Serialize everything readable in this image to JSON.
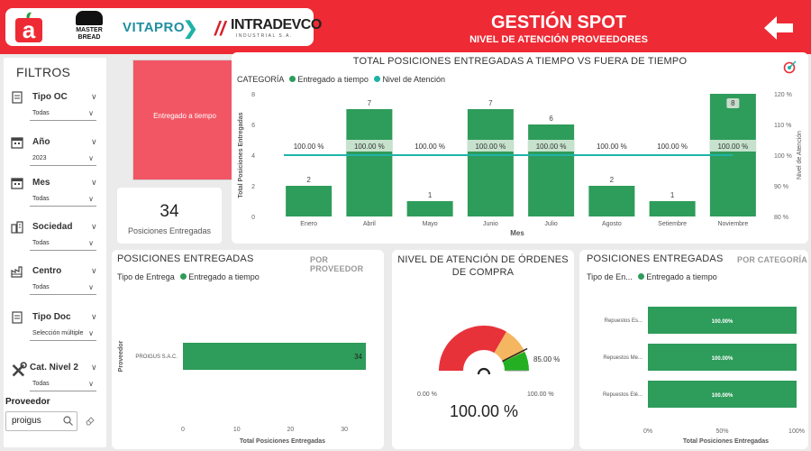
{
  "header": {
    "brand_vitapro": "VITAPRO",
    "brand_intradevco": "INTRADEVCO",
    "brand_intradevco_sub": "INDUSTRIAL S.A.",
    "brand_masterbread": "MASTER\nBREAD",
    "title": "GESTIÓN SPOT",
    "subtitle": "NIVEL DE ATENCIÓN PROVEEDORES"
  },
  "filters": {
    "title": "FILTROS",
    "items": [
      {
        "label": "Tipo OC",
        "value": "Todas",
        "icon": "document-icon"
      },
      {
        "label": "Año",
        "value": "2023",
        "icon": "calendar-icon"
      },
      {
        "label": "Mes",
        "value": "Todas",
        "icon": "calendar-icon"
      },
      {
        "label": "Sociedad",
        "value": "Todas",
        "icon": "building-icon"
      },
      {
        "label": "Centro",
        "value": "Todas",
        "icon": "factory-icon"
      },
      {
        "label": "Tipo Doc",
        "value": "Selección múltiple",
        "icon": "document-icon"
      },
      {
        "label": "Cat. Nivel 2",
        "value": "Todas",
        "icon": "tools-icon"
      }
    ],
    "proveedor_label": "Proveedor",
    "proveedor_value": "proigus"
  },
  "kpi": {
    "red_card_label": "Entregado a tiempo",
    "total_value": "34",
    "total_label": "Posiciones Entregadas"
  },
  "colors": {
    "brand_red": "#ee2a34",
    "bar_green": "#2e9c5a",
    "line_teal": "#1fb3a7",
    "card_red": "#f25664",
    "gauge_red": "#e8323a",
    "gauge_orange": "#f5b661",
    "gauge_green": "#22b022"
  },
  "main_chart": {
    "title": "TOTAL POSICIONES ENTREGADAS A TIEMPO VS FUERA DE TIEMPO",
    "legend_title": "CATEGORÍA",
    "legend_bar": "Entregado a tiempo",
    "legend_line": "Nivel de Atención",
    "ylabel_left": "Total Posiciones Entregadas",
    "ylabel_right": "Nivel de Atención",
    "xlabel": "Mes"
  },
  "chart_data": [
    {
      "type": "bar",
      "title": "TOTAL POSICIONES ENTREGADAS A TIEMPO VS FUERA DE TIEMPO",
      "categories": [
        "Enero",
        "Abril",
        "Mayo",
        "Junio",
        "Julio",
        "Agosto",
        "Setiembre",
        "Noviembre"
      ],
      "series": [
        {
          "name": "Entregado a tiempo",
          "type": "bar",
          "values": [
            2,
            7,
            1,
            7,
            6,
            2,
            1,
            8
          ]
        },
        {
          "name": "Nivel de Atención",
          "type": "line",
          "axis": "right",
          "values": [
            100,
            100,
            100,
            100,
            100,
            100,
            100,
            100
          ],
          "labels": [
            "100.00 %",
            "100.00 %",
            "100.00 %",
            "100.00 %",
            "100.00 %",
            "100.00 %",
            "100.00 %",
            "100.00 %"
          ]
        }
      ],
      "xlabel": "Mes",
      "ylabel": "Total Posiciones Entregadas",
      "ylabel_right": "Nivel de Atención",
      "ylim": [
        0,
        8
      ],
      "yticks": [
        0,
        2,
        4,
        6,
        8
      ],
      "ylim_right": [
        80,
        120
      ],
      "yticks_right": [
        "80 %",
        "90 %",
        "100 %",
        "110 %",
        "120 %"
      ],
      "legend": "top-left"
    },
    {
      "type": "bar",
      "orientation": "horizontal",
      "title": "POSICIONES ENTREGADAS",
      "categories": [
        "PROIGUS S.A.C."
      ],
      "series": [
        {
          "name": "Entregado a tiempo",
          "values": [
            34
          ]
        }
      ],
      "xlabel": "Total Posiciones Entregadas",
      "ylabel": "Proveedor",
      "xlim": [
        0,
        35
      ],
      "xticks": [
        0,
        10,
        20,
        30
      ]
    },
    {
      "type": "gauge",
      "title": "NIVEL DE ATENCIÓN DE ÓRDENES DE COMPRA",
      "value": 100,
      "value_label": "100.00 %",
      "min_label": "0.00 %",
      "max_label": "100.00 %",
      "target_label": "85.00 %"
    },
    {
      "type": "bar",
      "orientation": "horizontal",
      "stacked_percent": true,
      "title": "POSICIONES ENTREGADAS",
      "categories": [
        "Repuestos Es...",
        "Repuestos Me...",
        "Repuestos Elé..."
      ],
      "series": [
        {
          "name": "Entregado a tiempo",
          "values": [
            100,
            100,
            100
          ],
          "labels": [
            "100.00%",
            "100.00%",
            "100.00%"
          ]
        }
      ],
      "xlabel": "Total Posiciones Entregadas",
      "xticks": [
        "0%",
        "50%",
        "100%"
      ]
    }
  ],
  "panel_bl": {
    "title": "POSICIONES ENTREGADAS",
    "by": "POR PROVEEDOR",
    "legend_title": "Tipo de Entrega",
    "legend_item": "Entregado a tiempo"
  },
  "panel_bc": {
    "title": "NIVEL DE ATENCIÓN DE ÓRDENES DE COMPRA"
  },
  "panel_br": {
    "title": "POSICIONES ENTREGADAS",
    "by": "POR CATEGORÍA",
    "legend_title": "Tipo de En...",
    "legend_item": "Entregado a tiempo"
  }
}
